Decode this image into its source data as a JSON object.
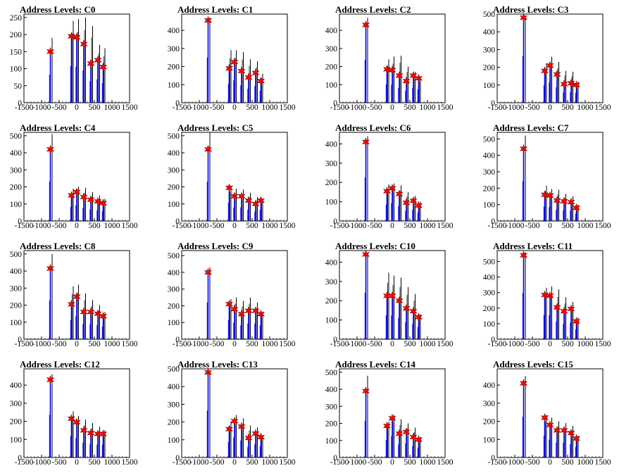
{
  "figure": {
    "xlim": [
      -1500,
      1500
    ],
    "xticks": [
      -1500,
      -1000,
      -500,
      0,
      500,
      1000,
      1500
    ],
    "bar_color": "#0000ff",
    "marker_color": "#ff0000"
  },
  "chart_data": [
    {
      "type": "bar",
      "title": "Address Levels: C0",
      "ylim": [
        0,
        260
      ],
      "yticks": [
        0,
        50,
        100,
        150,
        200,
        250
      ],
      "levels": [
        -750,
        -150,
        0,
        200,
        400,
        600,
        750
      ],
      "peak_values": [
        150,
        195,
        192,
        172,
        115,
        125,
        105
      ],
      "max_values": [
        190,
        240,
        245,
        250,
        225,
        170,
        160
      ]
    },
    {
      "type": "bar",
      "title": "Address Levels: C1",
      "ylim": [
        0,
        490
      ],
      "yticks": [
        0,
        100,
        200,
        300,
        400
      ],
      "levels": [
        -750,
        -150,
        0,
        200,
        400,
        600,
        750
      ],
      "peak_values": [
        455,
        190,
        225,
        175,
        140,
        165,
        120
      ],
      "max_values": [
        470,
        290,
        290,
        280,
        240,
        230,
        160
      ]
    },
    {
      "type": "bar",
      "title": "Address Levels: C2",
      "ylim": [
        0,
        490
      ],
      "yticks": [
        0,
        100,
        200,
        300,
        400
      ],
      "levels": [
        -750,
        -150,
        0,
        200,
        400,
        600,
        750
      ],
      "peak_values": [
        430,
        185,
        180,
        150,
        120,
        150,
        135
      ],
      "max_values": [
        470,
        240,
        255,
        260,
        200,
        170,
        140
      ]
    },
    {
      "type": "bar",
      "title": "Address Levels: C3",
      "ylim": [
        0,
        500
      ],
      "yticks": [
        0,
        100,
        200,
        300,
        400,
        500
      ],
      "levels": [
        -750,
        -150,
        0,
        200,
        400,
        600,
        750
      ],
      "peak_values": [
        480,
        180,
        210,
        160,
        105,
        110,
        100
      ],
      "max_values": [
        490,
        220,
        260,
        230,
        180,
        175,
        120
      ]
    },
    {
      "type": "bar",
      "title": "Address Levels: C4",
      "ylim": [
        0,
        520
      ],
      "yticks": [
        0,
        100,
        200,
        300,
        400,
        500
      ],
      "levels": [
        -750,
        -150,
        0,
        200,
        400,
        600,
        750
      ],
      "peak_values": [
        420,
        150,
        170,
        140,
        125,
        115,
        105
      ],
      "max_values": [
        510,
        190,
        200,
        195,
        170,
        150,
        130
      ]
    },
    {
      "type": "bar",
      "title": "Address Levels: C5",
      "ylim": [
        0,
        520
      ],
      "yticks": [
        0,
        100,
        200,
        300,
        400,
        500
      ],
      "levels": [
        -750,
        -150,
        0,
        200,
        400,
        600,
        750
      ],
      "peak_values": [
        420,
        195,
        145,
        145,
        120,
        100,
        120
      ],
      "max_values": [
        520,
        200,
        190,
        185,
        165,
        140,
        125
      ]
    },
    {
      "type": "bar",
      "title": "Address Levels: C6",
      "ylim": [
        0,
        460
      ],
      "yticks": [
        0,
        100,
        200,
        300,
        400
      ],
      "levels": [
        -750,
        -150,
        0,
        200,
        400,
        600,
        750
      ],
      "peak_values": [
        410,
        155,
        170,
        140,
        95,
        105,
        80
      ],
      "max_values": [
        440,
        190,
        195,
        185,
        150,
        130,
        100
      ]
    },
    {
      "type": "bar",
      "title": "Address Levels: C7",
      "ylim": [
        0,
        540
      ],
      "yticks": [
        0,
        100,
        200,
        300,
        400,
        500
      ],
      "levels": [
        -750,
        -150,
        0,
        200,
        400,
        600,
        750
      ],
      "peak_values": [
        440,
        160,
        155,
        125,
        120,
        115,
        80
      ],
      "max_values": [
        520,
        215,
        195,
        190,
        165,
        150,
        100
      ]
    },
    {
      "type": "bar",
      "title": "Address Levels: C8",
      "ylim": [
        0,
        520
      ],
      "yticks": [
        0,
        100,
        200,
        300,
        400,
        500
      ],
      "levels": [
        -750,
        -150,
        0,
        200,
        400,
        600,
        750
      ],
      "peak_values": [
        415,
        205,
        250,
        160,
        160,
        150,
        135
      ],
      "max_values": [
        500,
        310,
        320,
        270,
        230,
        200,
        160
      ]
    },
    {
      "type": "bar",
      "title": "Address Levels: C9",
      "ylim": [
        0,
        530
      ],
      "yticks": [
        0,
        100,
        200,
        300,
        400,
        500
      ],
      "levels": [
        -750,
        -150,
        0,
        200,
        400,
        600,
        750
      ],
      "peak_values": [
        400,
        210,
        180,
        150,
        170,
        170,
        150
      ],
      "max_values": [
        430,
        240,
        250,
        230,
        250,
        220,
        165
      ]
    },
    {
      "type": "bar",
      "title": "Address Levels: C10",
      "ylim": [
        0,
        460
      ],
      "yticks": [
        0,
        100,
        200,
        300,
        400
      ],
      "levels": [
        -750,
        -150,
        0,
        200,
        400,
        600,
        750
      ],
      "peak_values": [
        440,
        225,
        225,
        200,
        160,
        145,
        115
      ],
      "max_values": [
        450,
        345,
        330,
        320,
        270,
        235,
        130
      ]
    },
    {
      "type": "bar",
      "title": "Address Levels: C11",
      "ylim": [
        0,
        570
      ],
      "yticks": [
        0,
        100,
        200,
        300,
        400,
        500
      ],
      "levels": [
        -750,
        -150,
        0,
        200,
        400,
        600,
        750
      ],
      "peak_values": [
        540,
        285,
        280,
        205,
        180,
        195,
        115
      ],
      "max_values": [
        560,
        330,
        340,
        320,
        270,
        240,
        140
      ]
    },
    {
      "type": "bar",
      "title": "Address Levels: C12",
      "ylim": [
        0,
        490
      ],
      "yticks": [
        0,
        100,
        200,
        300,
        400
      ],
      "levels": [
        -750,
        -150,
        0,
        200,
        400,
        600,
        750
      ],
      "peak_values": [
        430,
        215,
        195,
        150,
        135,
        130,
        130
      ],
      "max_values": [
        460,
        255,
        230,
        210,
        190,
        170,
        150
      ]
    },
    {
      "type": "bar",
      "title": "Address Levels: C13",
      "ylim": [
        0,
        500
      ],
      "yticks": [
        0,
        100,
        200,
        300,
        400,
        500
      ],
      "levels": [
        -750,
        -150,
        0,
        200,
        400,
        600,
        750
      ],
      "peak_values": [
        480,
        160,
        205,
        175,
        110,
        135,
        115
      ],
      "max_values": [
        490,
        205,
        240,
        220,
        180,
        170,
        125
      ]
    },
    {
      "type": "bar",
      "title": "Address Levels: C14",
      "ylim": [
        0,
        520
      ],
      "yticks": [
        0,
        100,
        200,
        300,
        400,
        500
      ],
      "levels": [
        -750,
        -150,
        0,
        200,
        400,
        600,
        750
      ],
      "peak_values": [
        390,
        185,
        230,
        140,
        150,
        120,
        105
      ],
      "max_values": [
        480,
        210,
        250,
        225,
        200,
        175,
        120
      ]
    },
    {
      "type": "bar",
      "title": "Address Levels: C15",
      "ylim": [
        0,
        490
      ],
      "yticks": [
        0,
        100,
        200,
        300,
        400
      ],
      "levels": [
        -750,
        -150,
        0,
        200,
        400,
        600,
        750
      ],
      "peak_values": [
        410,
        220,
        180,
        150,
        150,
        135,
        105
      ],
      "max_values": [
        450,
        235,
        220,
        200,
        190,
        175,
        120
      ]
    }
  ]
}
